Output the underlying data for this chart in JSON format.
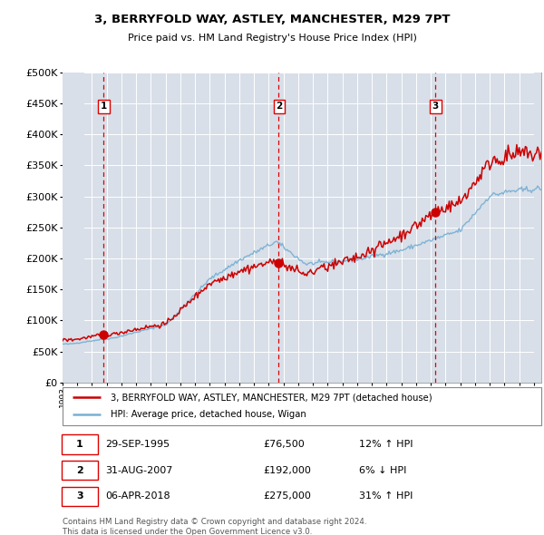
{
  "title": "3, BERRYFOLD WAY, ASTLEY, MANCHESTER, M29 7PT",
  "subtitle": "Price paid vs. HM Land Registry's House Price Index (HPI)",
  "red_line_label": "3, BERRYFOLD WAY, ASTLEY, MANCHESTER, M29 7PT (detached house)",
  "blue_line_label": "HPI: Average price, detached house, Wigan",
  "sale1_label": "29-SEP-1995",
  "sale1_price": 76500,
  "sale1_price_str": "£76,500",
  "sale1_hpi_pct": "12% ↑ HPI",
  "sale1_year": 1995.75,
  "sale2_label": "31-AUG-2007",
  "sale2_price": 192000,
  "sale2_price_str": "£192,000",
  "sale2_hpi_pct": "6% ↓ HPI",
  "sale2_year": 2007.67,
  "sale3_label": "06-APR-2018",
  "sale3_price": 275000,
  "sale3_price_str": "£275,000",
  "sale3_hpi_pct": "31% ↑ HPI",
  "sale3_year": 2018.27,
  "red_color": "#cc0000",
  "blue_color": "#7ab0d4",
  "bg_color": "#e8eef4",
  "hatch_bg_color": "#d8dfe8",
  "grid_color": "#ffffff",
  "vline_color": "#dd0000",
  "ylim": [
    0,
    500000
  ],
  "xlim_start": 1993.0,
  "xlim_end": 2025.5,
  "footer": "Contains HM Land Registry data © Crown copyright and database right 2024.\nThis data is licensed under the Open Government Licence v3.0."
}
